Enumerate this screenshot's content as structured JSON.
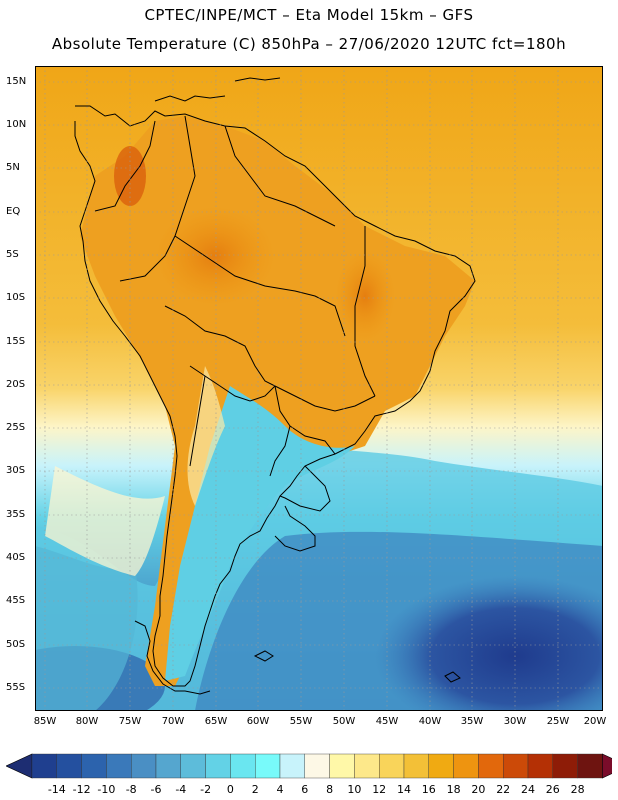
{
  "header": {
    "line1": "CPTEC/INPE/MCT –  Eta Model 15km – GFS",
    "line2": "Absolute Temperature (C) 850hPa – 27/06/2020 12UTC fct=180h"
  },
  "axes": {
    "lat_labels": [
      "15N",
      "10N",
      "5N",
      "EQ",
      "5S",
      "10S",
      "15S",
      "20S",
      "25S",
      "30S",
      "35S",
      "40S",
      "45S",
      "50S",
      "55S"
    ],
    "lon_labels": [
      "85W",
      "80W",
      "75W",
      "70W",
      "65W",
      "60W",
      "55W",
      "50W",
      "45W",
      "40W",
      "35W",
      "30W",
      "25W",
      "20W"
    ]
  },
  "colorbar": {
    "labels": [
      "-14",
      "-12",
      "-10",
      "-8",
      "-6",
      "-4",
      "-2",
      "0",
      "2",
      "4",
      "6",
      "8",
      "10",
      "12",
      "14",
      "16",
      "18",
      "20",
      "22",
      "24",
      "26",
      "28"
    ],
    "colors": [
      "#1f3f8f",
      "#24509f",
      "#2c63ad",
      "#3a79ba",
      "#4a8fc4",
      "#55a6cf",
      "#5dbcda",
      "#63d2e6",
      "#6ae6f0",
      "#78fafa",
      "#c8f3fb",
      "#fdf8e6",
      "#fff8a8",
      "#fde88a",
      "#f9d45a",
      "#f3c037",
      "#f0aa12",
      "#ee9410",
      "#e2680c",
      "#cc4a08",
      "#b43005",
      "#8e1c07",
      "#6e1410"
    ],
    "lower_arrow": "#1d2d72",
    "upper_arrow": "#7a0c2a"
  },
  "map": {
    "region": "South America",
    "field": "Absolute Temperature 850hPa",
    "warm_color": "#eea31a",
    "cold_color": "#5dd3e6",
    "deep_cold_color": "#233c8f"
  }
}
